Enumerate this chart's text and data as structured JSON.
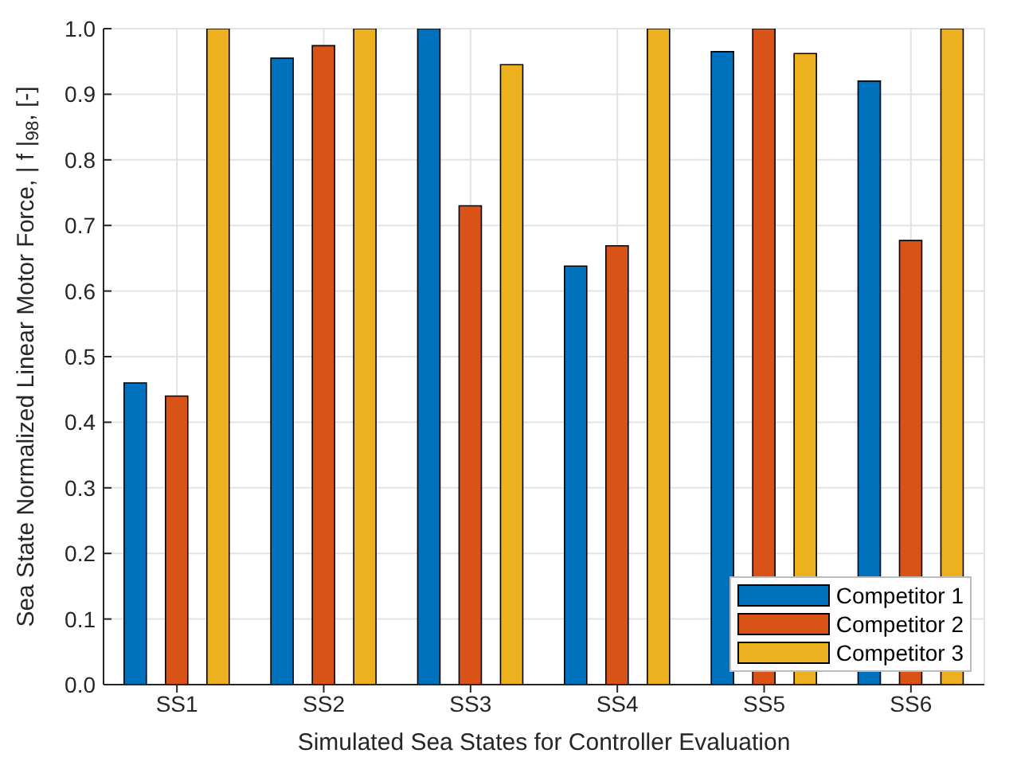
{
  "chart_data": {
    "type": "bar",
    "xlabel": "Simulated Sea States for Controller Evaluation",
    "ylabel": "Sea State Normalized Linear Motor Force, | f |$_{98}$, [-]",
    "categories": [
      "SS1",
      "SS2",
      "SS3",
      "SS4",
      "SS5",
      "SS6"
    ],
    "series": [
      {
        "name": "Competitor 1",
        "color": "#0072bd",
        "values": [
          0.46,
          0.955,
          1.0,
          0.638,
          0.965,
          0.92
        ]
      },
      {
        "name": "Competitor 2",
        "color": "#d95319",
        "values": [
          0.44,
          0.974,
          0.73,
          0.669,
          1.0,
          0.677
        ]
      },
      {
        "name": "Competitor 3",
        "color": "#edb120",
        "values": [
          1.0,
          1.0,
          0.945,
          1.0,
          0.962,
          1.0
        ]
      }
    ],
    "ylim": [
      0,
      1
    ],
    "yticks": [
      {
        "value": 0,
        "label": "0.0"
      },
      {
        "value": 0.1,
        "label": "0.1"
      },
      {
        "value": 0.2,
        "label": "0.2"
      },
      {
        "value": 0.3,
        "label": "0.3"
      },
      {
        "value": 0.4,
        "label": "0.4"
      },
      {
        "value": 0.5,
        "label": "0.5"
      },
      {
        "value": 0.6,
        "label": "0.6"
      },
      {
        "value": 0.7,
        "label": "0.7"
      },
      {
        "value": 0.8,
        "label": "0.8"
      },
      {
        "value": 0.9,
        "label": "0.9"
      },
      {
        "value": 1,
        "label": "1.0"
      }
    ],
    "grid": true,
    "legend": "bottom right"
  }
}
